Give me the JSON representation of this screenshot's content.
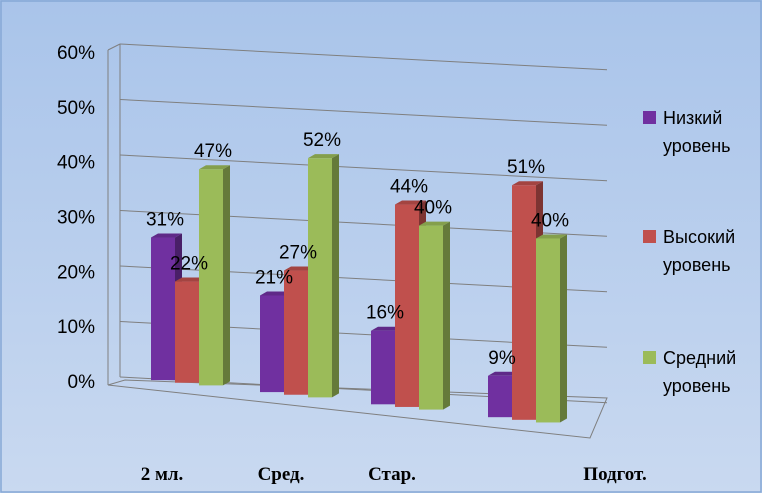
{
  "chart_data": {
    "type": "bar",
    "categories": [
      "2 мл.",
      "Сред.",
      "Стар.",
      "Подгот."
    ],
    "series": [
      {
        "name": "Низкий уровень",
        "values": [
          31,
          21,
          16,
          9
        ],
        "color": "#7030A0",
        "legend_lines": [
          "Низкий",
          "уровень"
        ]
      },
      {
        "name": "Высокий уровень",
        "values": [
          22,
          27,
          44,
          51
        ],
        "color": "#C0504D",
        "legend_lines": [
          "Высокий",
          "уровень"
        ]
      },
      {
        "name": "Средний уровень",
        "values": [
          47,
          52,
          40,
          40
        ],
        "color": "#9BBB59",
        "legend_lines": [
          "Средний",
          "уровень"
        ]
      }
    ],
    "y_ticks": [
      "0%",
      "10%",
      "20%",
      "30%",
      "40%",
      "50%",
      "60%"
    ],
    "data_labels": [
      [
        "31%",
        "21%",
        "16%",
        "9%"
      ],
      [
        "22%",
        "27%",
        "44%",
        "51%"
      ],
      [
        "47%",
        "52%",
        "40%",
        "40%"
      ]
    ],
    "ylim": [
      0,
      60
    ],
    "grid": true,
    "legend_position": "right",
    "background": "#B4CDEB",
    "three_d": true
  }
}
